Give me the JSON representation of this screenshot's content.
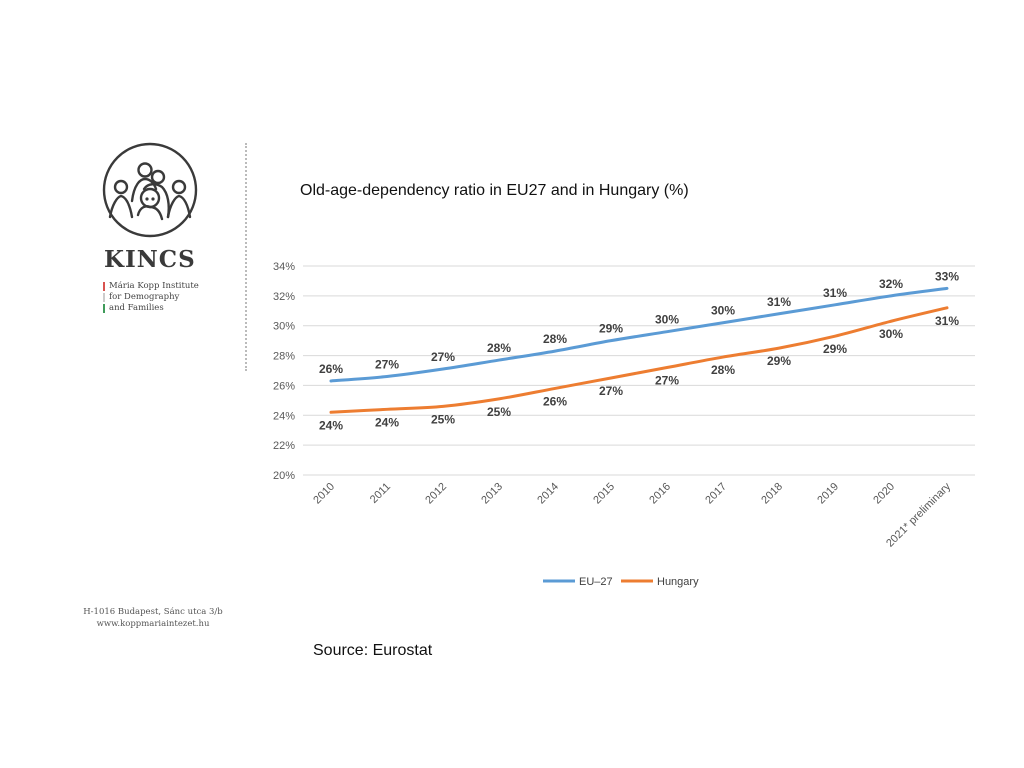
{
  "brand": {
    "name": "KINCS",
    "subtitle_lines": [
      "Mária Kopp Institute",
      "for Demography",
      "and Families"
    ],
    "subtitle_bar_colors": [
      "#d9534f",
      "#cccccc",
      "#3f9b5a"
    ],
    "address_lines": [
      "H-1016 Budapest, Sánc utca 3/b",
      "www.koppmariaintezet.hu"
    ],
    "logo_icon": "family-circle-icon"
  },
  "source": "Source: Eurostat",
  "chart_data": {
    "type": "line",
    "title": "Old-age-dependency ratio in EU27 and in Hungary (%)",
    "xlabel": "",
    "ylabel": "",
    "categories": [
      "2010",
      "2011",
      "2012",
      "2013",
      "2014",
      "2015",
      "2016",
      "2017",
      "2018",
      "2019",
      "2020",
      "2021* preliminary"
    ],
    "ylim": [
      20,
      34
    ],
    "yticks": [
      20,
      22,
      24,
      26,
      28,
      30,
      32,
      34
    ],
    "ytick_labels": [
      "20%",
      "22%",
      "24%",
      "26%",
      "28%",
      "30%",
      "32%",
      "34%"
    ],
    "grid": true,
    "legend": "bottom",
    "series": [
      {
        "name": "EU–27",
        "color": "#5b9bd5",
        "values": [
          26.3,
          26.6,
          27.1,
          27.7,
          28.3,
          29.0,
          29.6,
          30.2,
          30.8,
          31.4,
          32.0,
          32.5
        ],
        "labels": [
          "26%",
          "27%",
          "27%",
          "28%",
          "28%",
          "29%",
          "30%",
          "30%",
          "31%",
          "31%",
          "32%",
          "33%"
        ]
      },
      {
        "name": "Hungary",
        "color": "#ed7d31",
        "values": [
          24.2,
          24.4,
          24.6,
          25.1,
          25.8,
          26.5,
          27.2,
          27.9,
          28.5,
          29.3,
          30.3,
          31.2
        ],
        "labels": [
          "24%",
          "24%",
          "25%",
          "25%",
          "26%",
          "27%",
          "27%",
          "28%",
          "29%",
          "29%",
          "30%",
          "31%"
        ]
      }
    ]
  }
}
